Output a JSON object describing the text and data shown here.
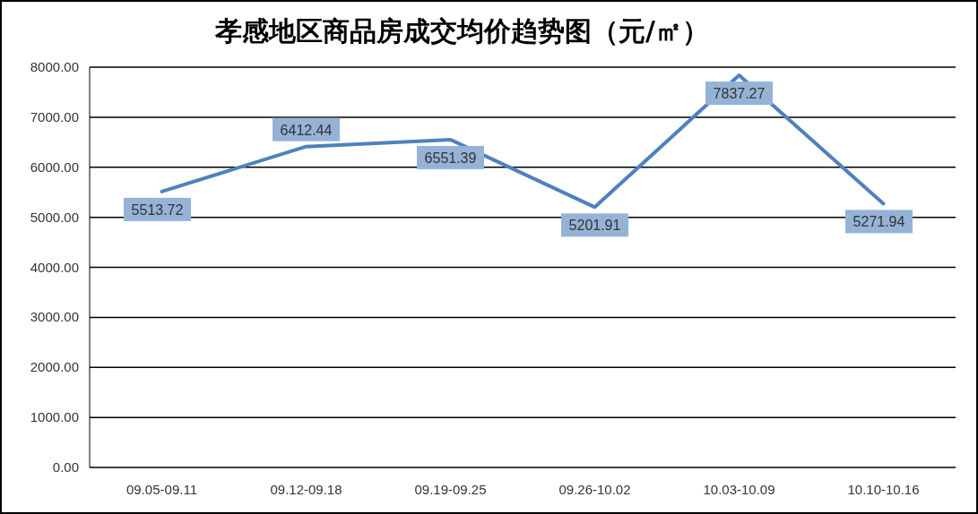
{
  "chart_data": {
    "type": "line",
    "title": "孝感地区商品房成交均价趋势图（元/㎡）",
    "categories": [
      "09.05-09.11",
      "09.12-09.18",
      "09.19-09.25",
      "09.26-10.02",
      "10.03-10.09",
      "10.10-10.16"
    ],
    "series": [
      {
        "color": "#4f81bd",
        "values": [
          5513.72,
          6412.44,
          6551.39,
          5201.91,
          7837.27,
          5271.94
        ]
      }
    ],
    "ylim": [
      0,
      8000
    ],
    "yticks": [
      {
        "value": 0,
        "label": "0.00"
      },
      {
        "value": 1000,
        "label": "1000.00"
      },
      {
        "value": 2000,
        "label": "2000.00"
      },
      {
        "value": 3000,
        "label": "3000.00"
      },
      {
        "value": 4000,
        "label": "4000.00"
      },
      {
        "value": 5000,
        "label": "5000.00"
      },
      {
        "value": 6000,
        "label": "6000.00"
      },
      {
        "value": 7000,
        "label": "7000.00"
      },
      {
        "value": 8000,
        "label": "8000.00"
      }
    ],
    "grid": "y",
    "marker": "none",
    "line_style": "solid",
    "data_labels": true
  }
}
